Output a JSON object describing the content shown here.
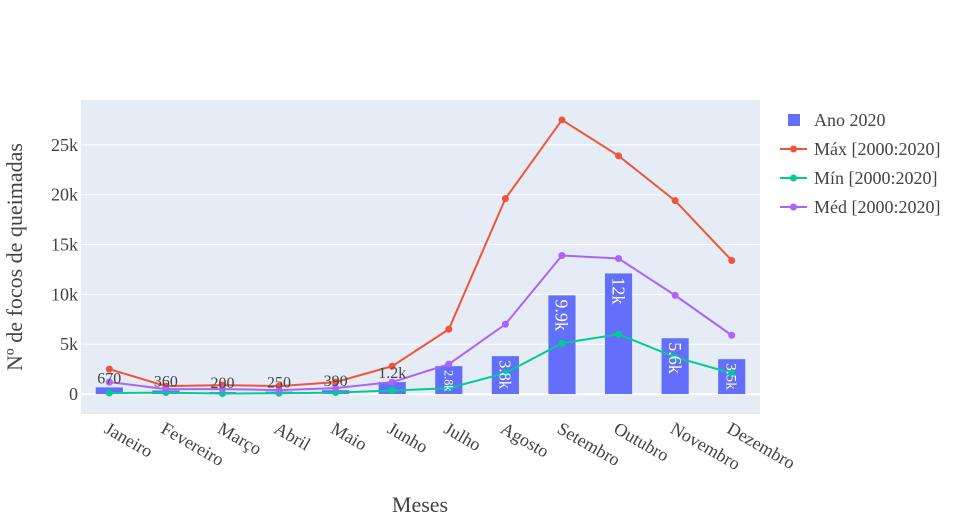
{
  "chart_data": {
    "type": "bar",
    "title": "",
    "xlabel": "Meses",
    "ylabel": "Nº de focos de queimadas",
    "categories": [
      "Janeiro",
      "Fevereiro",
      "Março",
      "Abril",
      "Maio",
      "Junho",
      "Julho",
      "Agosto",
      "Setembro",
      "Outubro",
      "Novembro",
      "Dezembro"
    ],
    "ylim": [
      -2000,
      29500
    ],
    "yticks": [
      0,
      5000,
      10000,
      15000,
      20000,
      25000
    ],
    "ytick_labels": [
      "0",
      "5k",
      "10k",
      "15k",
      "20k",
      "25k"
    ],
    "grid": true,
    "legend_position": "right",
    "series": [
      {
        "name": "Ano 2020",
        "kind": "bar",
        "color": "#636efa",
        "values": [
          670,
          360,
          200,
          250,
          390,
          1200,
          2800,
          3800,
          9900,
          12100,
          5600,
          3500
        ],
        "labels": [
          "670",
          "360",
          "200",
          "250",
          "390",
          "1.2k",
          "2.8k",
          "3.8k",
          "9.9k",
          "12k",
          "5.6k",
          "3.5k"
        ]
      },
      {
        "name": "Máx [2000:2020]",
        "kind": "line",
        "color": "#ef553b",
        "values": [
          2500,
          800,
          900,
          800,
          1200,
          2800,
          6500,
          19600,
          27500,
          23900,
          19400,
          13400
        ]
      },
      {
        "name": "Mín [2000:2020]",
        "kind": "line",
        "color": "#00cc96",
        "values": [
          100,
          150,
          50,
          80,
          150,
          350,
          600,
          2100,
          5100,
          6000,
          3700,
          2100
        ]
      },
      {
        "name": "Méd [2000:2020]",
        "kind": "line",
        "color": "#ab63fa",
        "values": [
          1200,
          500,
          500,
          400,
          600,
          1200,
          3000,
          7000,
          13900,
          13600,
          9900,
          5900
        ]
      }
    ]
  }
}
